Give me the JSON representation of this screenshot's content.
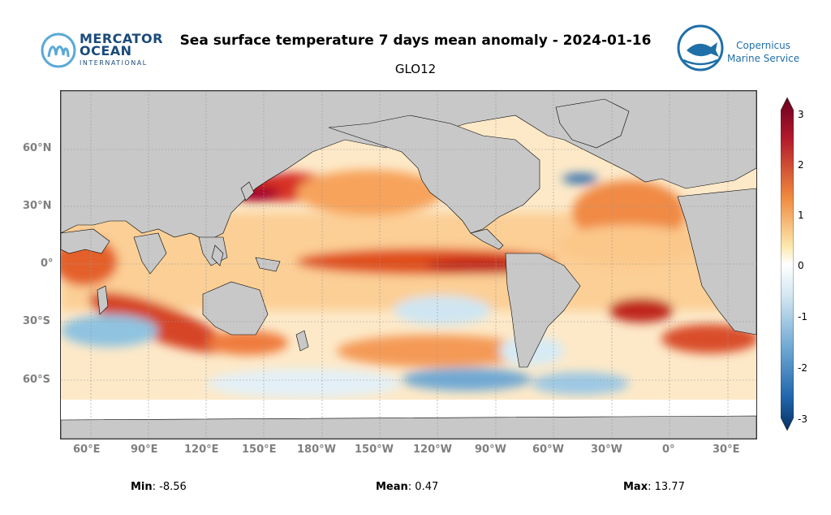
{
  "header": {
    "title": "Sea surface temperature 7 days mean anomaly - 2024-01-16",
    "subtitle": "GLO12"
  },
  "logos": {
    "left": {
      "line1": "MERCATOR",
      "line2": "OCEAN",
      "line3": "INTERNATIONAL"
    },
    "right": {
      "line1": "Copernicus",
      "line2": "Marine Service"
    }
  },
  "map": {
    "lat_labels": [
      "60°N",
      "30°N",
      "0°",
      "30°S",
      "60°S"
    ],
    "lon_labels": [
      "60°E",
      "90°E",
      "120°E",
      "150°E",
      "180°W",
      "150°W",
      "120°W",
      "90°W",
      "60°W",
      "30°W",
      "0°",
      "30°E"
    ]
  },
  "colorbar": {
    "ticks": [
      "3",
      "2",
      "1",
      "0",
      "-1",
      "-2",
      "-3"
    ],
    "min": -3,
    "max": 3,
    "colors": {
      "warm": "#b2182b",
      "mid": "#ffffff",
      "cold": "#2166ac"
    }
  },
  "stats": {
    "min_label": "Min",
    "min_value": ": -8.56",
    "mean_label": "Mean",
    "mean_value": ": 0.47",
    "max_label": "Max",
    "max_value": ": 13.77"
  }
}
